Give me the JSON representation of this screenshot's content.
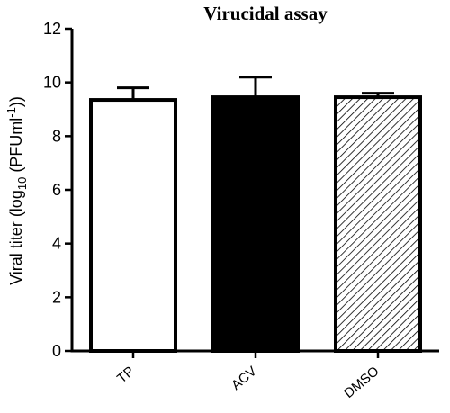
{
  "chart_data": {
    "type": "bar",
    "title": "Virucidal assay",
    "xlabel": "",
    "ylabel": {
      "prefix": "Viral titer (log",
      "sub": "10",
      "mid": " (PFUml",
      "sup": "-1",
      "suffix": "))"
    },
    "ylim": [
      0,
      12
    ],
    "yticks": [
      0,
      2,
      4,
      6,
      8,
      10,
      12
    ],
    "categories": [
      "TP",
      "ACV",
      "DMSO"
    ],
    "values": [
      9.35,
      9.45,
      9.45
    ],
    "errors": [
      0.45,
      0.75,
      0.15
    ],
    "fills": [
      "white",
      "black",
      "hatched"
    ],
    "grid": false,
    "colors": {
      "bar_stroke": "#000000",
      "solid_fill": "#000000",
      "empty_fill": "#ffffff"
    }
  }
}
